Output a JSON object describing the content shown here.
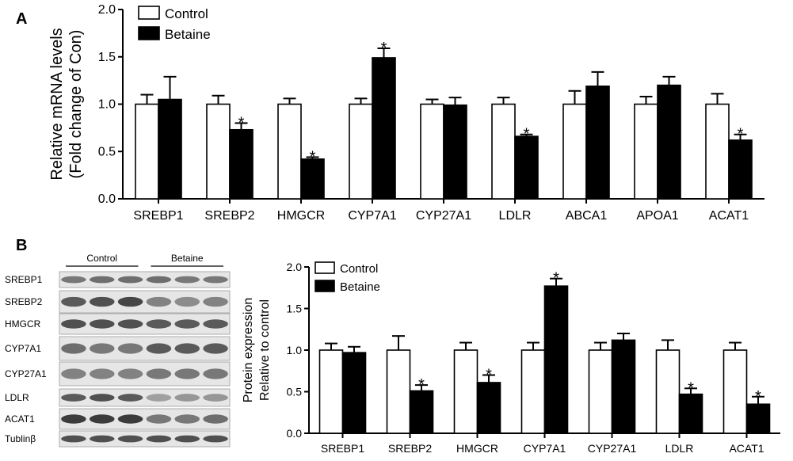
{
  "colors": {
    "control": "#ffffff",
    "betaine": "#000000",
    "stroke": "#000000"
  },
  "chart_data": [
    {
      "panel": "A",
      "type": "bar",
      "ylabel": [
        "Relative mRNA levels",
        "(Fold change of Con)"
      ],
      "ylim": [
        0,
        2.0
      ],
      "yticks": [
        "0.0",
        "0.5",
        "1.0",
        "1.5",
        "2.0"
      ],
      "categories": [
        "SREBP1",
        "SREBP2",
        "HMGCR",
        "CYP7A1",
        "CYP27A1",
        "LDLR",
        "ABCA1",
        "APOA1",
        "ACAT1"
      ],
      "series": [
        {
          "name": "Control",
          "values": [
            1.0,
            1.0,
            1.0,
            1.0,
            1.0,
            1.0,
            1.0,
            1.0,
            1.0
          ],
          "errors": [
            0.1,
            0.09,
            0.06,
            0.06,
            0.05,
            0.07,
            0.14,
            0.08,
            0.11
          ]
        },
        {
          "name": "Betaine",
          "values": [
            1.05,
            0.73,
            0.42,
            1.49,
            0.99,
            0.66,
            1.19,
            1.2,
            0.62
          ],
          "errors": [
            0.24,
            0.07,
            0.02,
            0.1,
            0.08,
            0.02,
            0.15,
            0.09,
            0.06
          ]
        }
      ],
      "significance": [
        "",
        "*",
        "*",
        "*",
        "",
        "*",
        "",
        "",
        "*"
      ],
      "legend": "top-left"
    },
    {
      "panel": "B",
      "type": "bar",
      "ylabel": [
        "Protein expression",
        "Relative to control"
      ],
      "ylim": [
        0,
        2.0
      ],
      "yticks": [
        "0.0",
        "0.5",
        "1.0",
        "1.5",
        "2.0"
      ],
      "categories": [
        "SREBP1",
        "SREBP2",
        "HMGCR",
        "CYP7A1",
        "CYP27A1",
        "LDLR",
        "ACAT1"
      ],
      "series": [
        {
          "name": "Control",
          "values": [
            1.0,
            1.0,
            1.0,
            1.0,
            1.0,
            1.0,
            1.0
          ],
          "errors": [
            0.08,
            0.17,
            0.09,
            0.09,
            0.09,
            0.12,
            0.09
          ]
        },
        {
          "name": "Betaine",
          "values": [
            0.97,
            0.51,
            0.61,
            1.77,
            1.12,
            0.47,
            0.35
          ],
          "errors": [
            0.07,
            0.07,
            0.09,
            0.09,
            0.08,
            0.07,
            0.09
          ]
        }
      ],
      "significance": [
        "",
        "*",
        "*",
        "*",
        "",
        "*",
        "*"
      ],
      "legend": "top-left"
    }
  ],
  "western_blot": {
    "groups": [
      "Control",
      "Betaine"
    ],
    "lanes_per_group": 3,
    "rows": [
      {
        "label": "SREBP1",
        "intensity": [
          0.55,
          0.6,
          0.6,
          0.6,
          0.55,
          0.55
        ]
      },
      {
        "label": "SREBP2",
        "intensity": [
          0.7,
          0.75,
          0.8,
          0.5,
          0.45,
          0.5
        ]
      },
      {
        "label": "HMGCR",
        "intensity": [
          0.75,
          0.75,
          0.75,
          0.7,
          0.7,
          0.7
        ]
      },
      {
        "label": "CYP7A1",
        "intensity": [
          0.6,
          0.55,
          0.55,
          0.7,
          0.7,
          0.7
        ]
      },
      {
        "label": "CYP27A1",
        "intensity": [
          0.5,
          0.5,
          0.5,
          0.55,
          0.55,
          0.55
        ]
      },
      {
        "label": "LDLR",
        "intensity": [
          0.7,
          0.75,
          0.7,
          0.35,
          0.4,
          0.4
        ]
      },
      {
        "label": "ACAT1",
        "intensity": [
          0.85,
          0.85,
          0.85,
          0.55,
          0.55,
          0.6
        ]
      },
      {
        "label": "Tublinβ",
        "intensity": [
          0.75,
          0.75,
          0.75,
          0.75,
          0.75,
          0.75
        ]
      }
    ]
  }
}
